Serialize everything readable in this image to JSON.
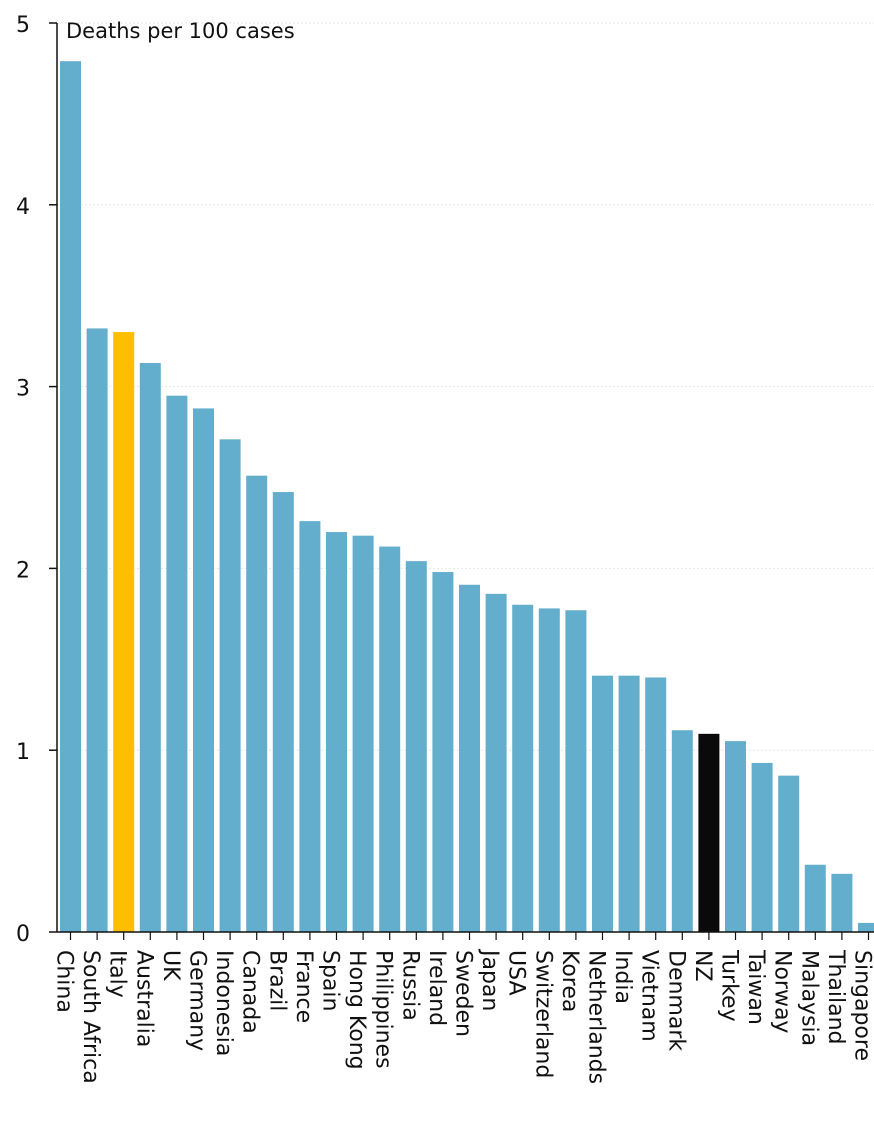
{
  "chart_data": {
    "type": "bar",
    "title": "",
    "xlabel": "",
    "ylabel": "Deaths per 100 cases",
    "ylim": [
      0,
      5
    ],
    "yticks": [
      "0",
      "1",
      "2",
      "3",
      "4",
      "5"
    ],
    "grid": true,
    "colors": {
      "default": "#64aecd",
      "highlight_italy": "#ffbf00",
      "highlight_nz": "#0a0a0a"
    },
    "highlight": {
      "Italy": "highlight_italy",
      "NZ": "highlight_nz"
    },
    "categories": [
      "China",
      "South Africa",
      "Italy",
      "Australia",
      "UK",
      "Germany",
      "Indonesia",
      "Canada",
      "Brazil",
      "France",
      "Spain",
      "Hong Kong",
      "Philippines",
      "Russia",
      "Ireland",
      "Sweden",
      "Japan",
      "USA",
      "Switzerland",
      "Korea",
      "Netherlands",
      "India",
      "Vietnam",
      "Denmark",
      "NZ",
      "Turkey",
      "Taiwan",
      "Norway",
      "Malaysia",
      "Thailand",
      "Singapore"
    ],
    "values": [
      4.79,
      3.32,
      3.3,
      3.13,
      2.95,
      2.88,
      2.71,
      2.51,
      2.42,
      2.26,
      2.2,
      2.18,
      2.12,
      2.04,
      1.98,
      1.91,
      1.86,
      1.8,
      1.78,
      1.77,
      1.41,
      1.41,
      1.4,
      1.11,
      1.09,
      1.05,
      0.93,
      0.86,
      0.37,
      0.32,
      0.05
    ]
  }
}
